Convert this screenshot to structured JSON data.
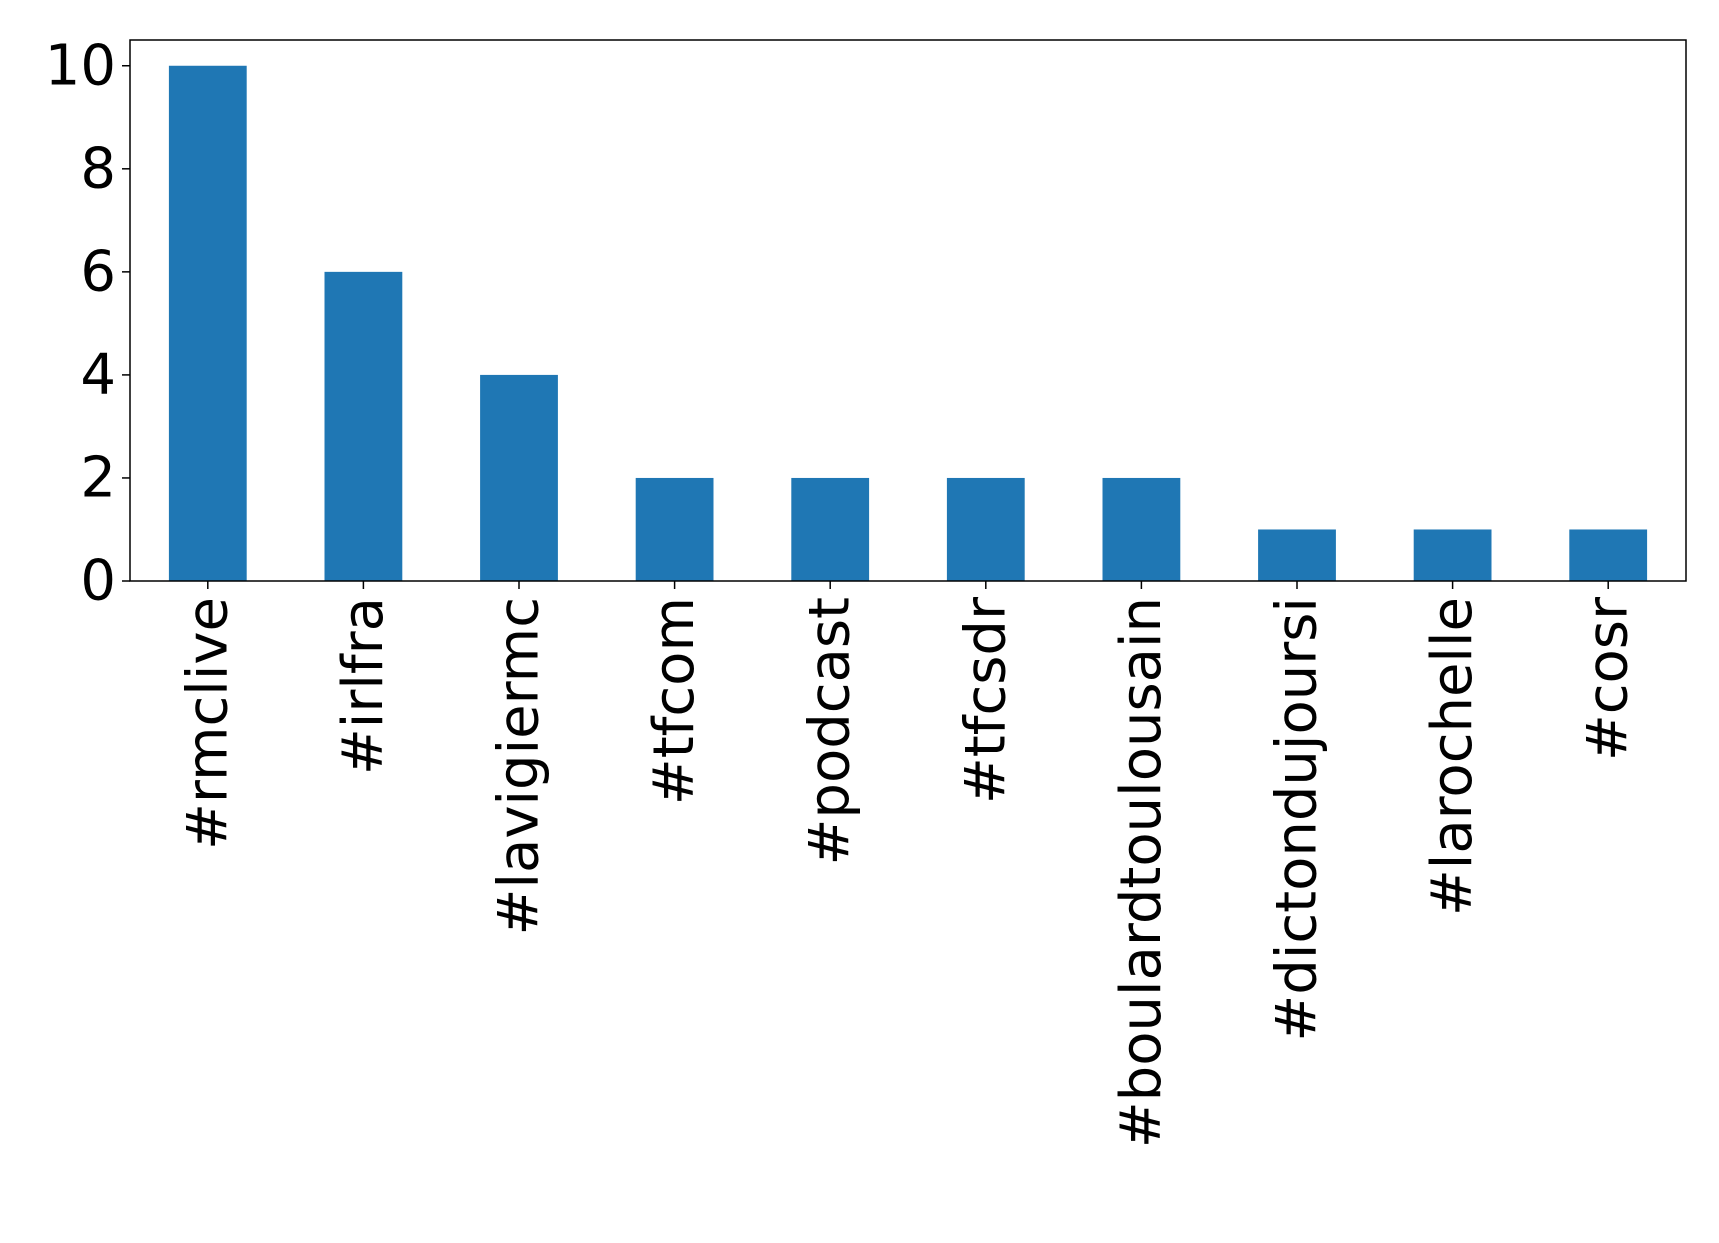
{
  "chart_data": {
    "type": "bar",
    "title": "",
    "xlabel": "",
    "ylabel": "",
    "categories": [
      "#rmclive",
      "#irlfra",
      "#lavigiermc",
      "#tfcom",
      "#podcast",
      "#tfcsdr",
      "#boulardtoulousain",
      "#dictondujoursi",
      "#larochelle",
      "#cosr"
    ],
    "values": [
      10,
      6,
      4,
      2,
      2,
      2,
      2,
      1,
      1,
      1
    ],
    "ylim": [
      0,
      10.5
    ],
    "yticks": [
      0,
      2,
      4,
      6,
      8,
      10
    ],
    "bar_color": "#1f77b4",
    "grid": false,
    "legend": "none"
  }
}
